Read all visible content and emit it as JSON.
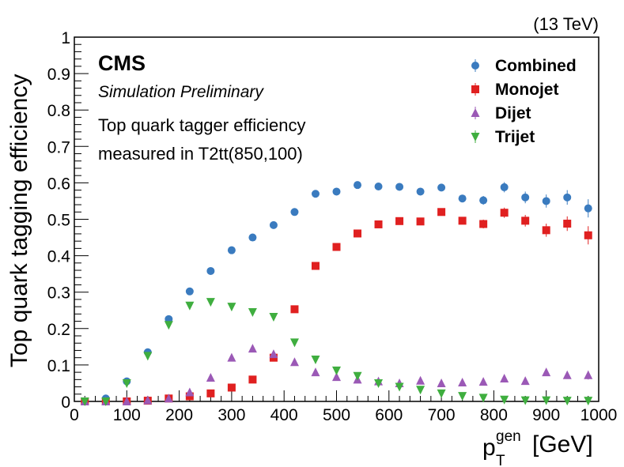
{
  "chart_data": {
    "type": "scatter",
    "energy_label": "(13 TeV)",
    "experiment": "CMS",
    "status": "Simulation Preliminary",
    "description_line1": "Top quark tagger efficiency",
    "description_line2": "measured in T2tt(850,100)",
    "ylabel": "Top quark tagging efficiency",
    "xlabel": {
      "p": "p",
      "sub": "T",
      "sup": "gen",
      "unit": "[GeV]"
    },
    "xlim": [
      0,
      1000
    ],
    "ylim": [
      0,
      1
    ],
    "x_ticks": [
      0,
      100,
      200,
      300,
      400,
      500,
      600,
      700,
      800,
      900,
      1000
    ],
    "x_tick_labels": [
      "0",
      "100",
      "200",
      "300",
      "400",
      "500",
      "600",
      "700",
      "800",
      "900",
      "1000"
    ],
    "y_ticks": [
      0,
      0.1,
      0.2,
      0.3,
      0.4,
      0.5,
      0.6,
      0.7,
      0.8,
      0.9,
      1
    ],
    "y_tick_labels": [
      "0",
      "0.1",
      "0.2",
      "0.3",
      "0.4",
      "0.5",
      "0.6",
      "0.7",
      "0.8",
      "0.9",
      "1"
    ],
    "x": [
      20,
      60,
      100,
      140,
      180,
      220,
      260,
      300,
      340,
      380,
      420,
      460,
      500,
      540,
      580,
      620,
      660,
      700,
      740,
      780,
      820,
      860,
      900,
      940,
      980
    ],
    "series": [
      {
        "name": "Combined",
        "marker": "circle",
        "color": "#3a7bbf",
        "values": [
          0.0,
          0.008,
          0.055,
          0.135,
          0.226,
          0.302,
          0.358,
          0.415,
          0.45,
          0.484,
          0.52,
          0.57,
          0.576,
          0.594,
          0.59,
          0.589,
          0.576,
          0.587,
          0.557,
          0.552,
          0.588,
          0.56,
          0.55,
          0.56,
          0.53
        ],
        "errors": [
          0,
          0,
          0,
          0,
          0,
          0,
          0,
          0,
          0,
          0,
          0,
          0,
          0,
          0,
          0,
          0,
          0,
          0,
          0.01,
          0.012,
          0.014,
          0.016,
          0.018,
          0.02,
          0.025
        ]
      },
      {
        "name": "Monojet",
        "marker": "square",
        "color": "#e02020",
        "values": [
          0.0,
          0.0,
          0.0,
          0.002,
          0.008,
          0.014,
          0.022,
          0.038,
          0.06,
          0.12,
          0.253,
          0.372,
          0.424,
          0.461,
          0.486,
          0.495,
          0.494,
          0.52,
          0.496,
          0.487,
          0.518,
          0.496,
          0.47,
          0.488,
          0.456
        ],
        "errors": [
          0,
          0,
          0,
          0,
          0,
          0,
          0,
          0,
          0,
          0,
          0,
          0,
          0,
          0,
          0,
          0,
          0,
          0,
          0.01,
          0.012,
          0.014,
          0.016,
          0.018,
          0.02,
          0.025
        ]
      },
      {
        "name": "Dijet",
        "marker": "triangle-up",
        "color": "#9b59b6",
        "values": [
          0.0,
          0.0,
          0.0,
          0.003,
          0.008,
          0.025,
          0.065,
          0.12,
          0.145,
          0.13,
          0.108,
          0.08,
          0.067,
          0.06,
          0.055,
          0.05,
          0.057,
          0.05,
          0.052,
          0.054,
          0.063,
          0.056,
          0.08,
          0.072,
          0.072
        ],
        "errors": [
          0,
          0,
          0,
          0,
          0,
          0,
          0,
          0,
          0,
          0,
          0,
          0,
          0,
          0,
          0,
          0,
          0,
          0,
          0.005,
          0.006,
          0.007,
          0.008,
          0.009,
          0.01,
          0.012
        ]
      },
      {
        "name": "Trijet",
        "marker": "triangle-down",
        "color": "#3fae3f",
        "values": [
          0.0,
          0.0,
          0.05,
          0.125,
          0.21,
          0.263,
          0.273,
          0.26,
          0.245,
          0.232,
          0.162,
          0.115,
          0.085,
          0.07,
          0.05,
          0.04,
          0.032,
          0.022,
          0.015,
          0.01,
          0.005,
          0.003,
          0.003,
          0.002,
          0.002
        ],
        "errors": [
          0,
          0,
          0,
          0,
          0,
          0,
          0,
          0,
          0,
          0,
          0,
          0,
          0,
          0,
          0,
          0,
          0,
          0,
          0,
          0,
          0,
          0,
          0,
          0,
          0
        ]
      }
    ]
  }
}
